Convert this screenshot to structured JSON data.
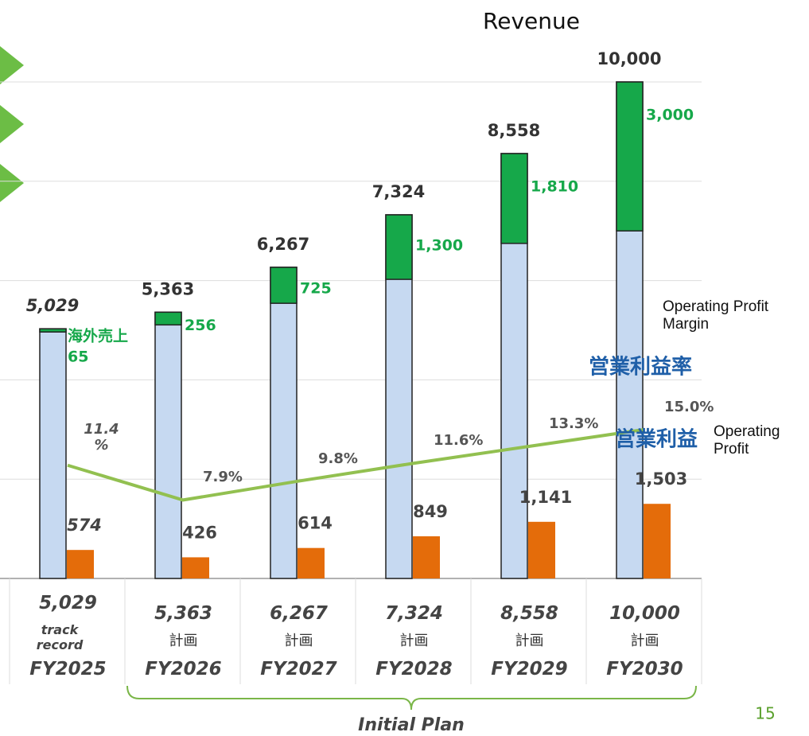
{
  "chart_data": {
    "type": "bar",
    "title": "Revenue",
    "categories": [
      "FY2025",
      "FY2026",
      "FY2027",
      "FY2028",
      "FY2029",
      "FY2030"
    ],
    "sublabels": [
      "track record",
      "計画",
      "計画",
      "計画",
      "計画",
      "計画"
    ],
    "revenue": {
      "values": [
        5029,
        5363,
        6267,
        7324,
        8558,
        10000
      ],
      "value_labels": [
        "5,029",
        "5,363",
        "6,267",
        "7,324",
        "8,558",
        "10,000"
      ],
      "color": "#c6d9f1"
    },
    "overseas": {
      "name": "海外売上",
      "values": [
        65,
        256,
        725,
        1300,
        1810,
        3000
      ],
      "value_labels": [
        "65",
        "256",
        "725",
        "1,300",
        "1,810",
        "3,000"
      ],
      "color": "#16a84a"
    },
    "operating_profit": {
      "name": "営業利益",
      "name_en": "Operating Profit",
      "values": [
        574,
        426,
        614,
        849,
        1141,
        1503
      ],
      "value_labels": [
        "574",
        "426",
        "614",
        "849",
        "1,141",
        "1,503"
      ],
      "color": "#e46c0a"
    },
    "margin": {
      "name": "営業利益率",
      "name_en": "Operating Profit Margin",
      "axis": "y2",
      "values": [
        11.4,
        7.9,
        9.8,
        11.6,
        13.3,
        15.0
      ],
      "value_labels": [
        "11.4 %",
        "7.9%",
        "9.8%",
        "11.6%",
        "13.3%",
        "15.0%"
      ],
      "color": "#92c050"
    },
    "ylim": [
      0,
      10000
    ],
    "yticks": [
      0,
      2000,
      4000,
      6000,
      8000,
      10000
    ],
    "y2lim": [
      0,
      50
    ],
    "grid": true,
    "annotation": "Initial Plan",
    "page_number": "15"
  }
}
